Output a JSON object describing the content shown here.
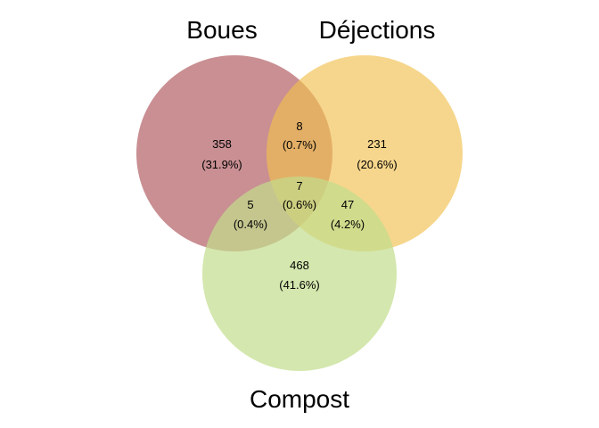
{
  "sets": [
    {
      "key": "boues",
      "name": "Boues",
      "color": "#b76a6f"
    },
    {
      "key": "dejections",
      "name": "Déjections",
      "color": "#f1c04e"
    },
    {
      "key": "compost",
      "name": "Compost",
      "color": "#c2dd8c"
    }
  ],
  "regions": {
    "boues_only": {
      "count": "358",
      "percent": "(31.9%)"
    },
    "dejections_only": {
      "count": "231",
      "percent": "(20.6%)"
    },
    "compost_only": {
      "count": "468",
      "percent": "(41.6%)"
    },
    "boues_dejections": {
      "count": "8",
      "percent": "(0.7%)"
    },
    "boues_compost": {
      "count": "5",
      "percent": "(0.4%)"
    },
    "dejections_compost": {
      "count": "47",
      "percent": "(4.2%)"
    },
    "all_three": {
      "count": "7",
      "percent": "(0.6%)"
    }
  }
}
